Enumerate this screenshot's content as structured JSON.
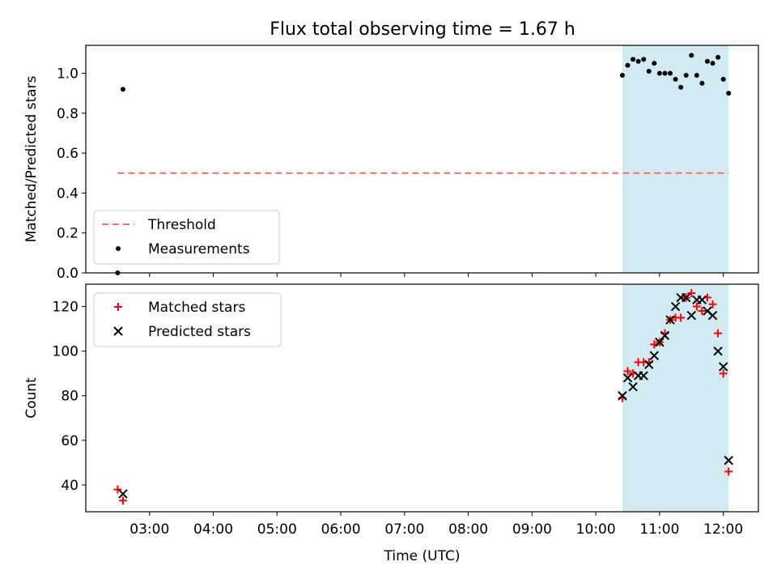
{
  "figure_title": "Flux total observing time = 1.67 h",
  "shade_color": "#add8e6",
  "chart_data": [
    {
      "type": "scatter",
      "ylabel": "Matched/Predicted stars",
      "ylim": [
        0,
        1.14
      ],
      "xlim": [
        "02:00",
        "12:33"
      ],
      "yticks": [
        0.0,
        0.2,
        0.4,
        0.6,
        0.8,
        1.0
      ],
      "tick_format": "1dp",
      "shaded_range": [
        "10:25",
        "12:05"
      ],
      "threshold": {
        "name": "Threshold",
        "value": 0.5,
        "x_range": [
          "02:30",
          "12:05"
        ],
        "color": "#ff6b6b"
      },
      "legend": {
        "placement": "lower-left",
        "entries": [
          "Threshold",
          "Measurements"
        ]
      },
      "series": [
        {
          "name": "Measurements",
          "marker": "dot",
          "color": "#000000",
          "points": [
            [
              "02:30",
              0.0
            ],
            [
              "02:35",
              0.92
            ],
            [
              "10:25",
              0.99
            ],
            [
              "10:30",
              1.04
            ],
            [
              "10:35",
              1.07
            ],
            [
              "10:40",
              1.06
            ],
            [
              "10:45",
              1.07
            ],
            [
              "10:50",
              1.01
            ],
            [
              "10:55",
              1.05
            ],
            [
              "11:00",
              1.0
            ],
            [
              "11:05",
              1.0
            ],
            [
              "11:10",
              1.0
            ],
            [
              "11:15",
              0.97
            ],
            [
              "11:20",
              0.93
            ],
            [
              "11:25",
              0.99
            ],
            [
              "11:30",
              1.09
            ],
            [
              "11:35",
              0.99
            ],
            [
              "11:40",
              0.95
            ],
            [
              "11:45",
              1.06
            ],
            [
              "11:50",
              1.05
            ],
            [
              "11:55",
              1.08
            ],
            [
              "12:00",
              0.97
            ],
            [
              "12:05",
              0.9
            ]
          ]
        }
      ]
    },
    {
      "type": "scatter",
      "ylabel": "Count",
      "xlabel": "Time (UTC)",
      "ylim": [
        28,
        130
      ],
      "xlim": [
        "02:00",
        "12:33"
      ],
      "yticks": [
        40,
        60,
        80,
        100,
        120
      ],
      "tick_format": "int",
      "xticks": [
        "03:00",
        "04:00",
        "05:00",
        "06:00",
        "07:00",
        "08:00",
        "09:00",
        "10:00",
        "11:00",
        "12:00"
      ],
      "shaded_range": [
        "10:25",
        "12:05"
      ],
      "legend": {
        "placement": "upper-left",
        "entries": [
          "Matched stars",
          "Predicted stars"
        ]
      },
      "series": [
        {
          "name": "Matched stars",
          "marker": "plus",
          "color": "#ff0000",
          "points": [
            [
              "02:30",
              38
            ],
            [
              "02:35",
              33
            ],
            [
              "10:25",
              79
            ],
            [
              "10:30",
              91
            ],
            [
              "10:35",
              90
            ],
            [
              "10:40",
              95
            ],
            [
              "10:45",
              95
            ],
            [
              "10:50",
              95
            ],
            [
              "10:55",
              103
            ],
            [
              "11:00",
              104
            ],
            [
              "11:05",
              108
            ],
            [
              "11:10",
              114
            ],
            [
              "11:15",
              115
            ],
            [
              "11:20",
              115
            ],
            [
              "11:25",
              124
            ],
            [
              "11:30",
              126
            ],
            [
              "11:35",
              120
            ],
            [
              "11:40",
              118
            ],
            [
              "11:45",
              124
            ],
            [
              "11:50",
              121
            ],
            [
              "11:55",
              108
            ],
            [
              "12:00",
              90
            ],
            [
              "12:05",
              46
            ]
          ]
        },
        {
          "name": "Predicted stars",
          "marker": "x",
          "color": "#000000",
          "points": [
            [
              "02:35",
              36
            ],
            [
              "10:25",
              80
            ],
            [
              "10:30",
              88
            ],
            [
              "10:35",
              84
            ],
            [
              "10:40",
              89
            ],
            [
              "10:45",
              89
            ],
            [
              "10:50",
              94
            ],
            [
              "10:55",
              98
            ],
            [
              "11:00",
              104
            ],
            [
              "11:05",
              107
            ],
            [
              "11:10",
              114
            ],
            [
              "11:15",
              120
            ],
            [
              "11:20",
              124
            ],
            [
              "11:25",
              124
            ],
            [
              "11:30",
              116
            ],
            [
              "11:35",
              123
            ],
            [
              "11:40",
              123
            ],
            [
              "11:45",
              118
            ],
            [
              "11:50",
              116
            ],
            [
              "11:55",
              100
            ],
            [
              "12:00",
              93
            ],
            [
              "12:05",
              51
            ]
          ]
        }
      ]
    }
  ]
}
